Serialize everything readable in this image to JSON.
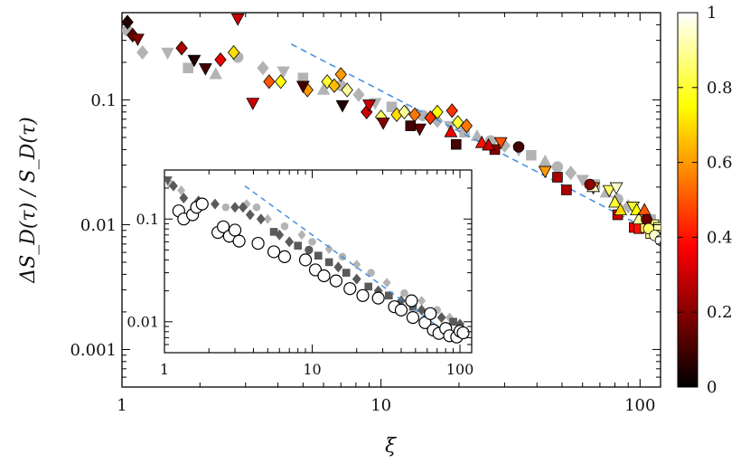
{
  "chart_data": {
    "type": "scatter",
    "xlabel": "ξ",
    "ylabel": "ΔS_D(τ) / S_D(τ)",
    "xscale": "log",
    "yscale": "log",
    "xlim": [
      1,
      120
    ],
    "ylim": [
      0.0005,
      0.5
    ],
    "x_ticks": [
      "1",
      "10",
      "100"
    ],
    "y_ticks": [
      "0.001",
      "0.01",
      "0.1"
    ],
    "grid": false,
    "colorbar": {
      "range": [
        0,
        1
      ],
      "ticks": [
        "0",
        "0.2",
        "0.4",
        "0.6",
        "0.8",
        "1"
      ],
      "colormap": "hot"
    },
    "reference_line": {
      "style": "dashed",
      "color": "#4a8fe0",
      "x": [
        4.5,
        115
      ],
      "y": [
        0.28,
        0.0085
      ]
    },
    "series": [
      {
        "marker": "diamond",
        "colored": true,
        "points": [
          [
            1.05,
            0.42,
            0.05
          ],
          [
            1.1,
            0.33,
            0.15
          ],
          [
            1.7,
            0.26,
            0.25
          ],
          [
            2.4,
            0.21,
            0.35
          ],
          [
            2.7,
            0.24,
            0.7
          ],
          [
            3.7,
            0.14,
            0.5
          ],
          [
            4.1,
            0.14,
            0.75
          ],
          [
            5.2,
            0.12,
            0.6
          ],
          [
            6.2,
            0.14,
            0.8
          ],
          [
            6.6,
            0.13,
            0.65
          ],
          [
            7.0,
            0.16,
            0.6
          ],
          [
            7.4,
            0.12,
            0.9
          ],
          [
            8.8,
            0.08,
            0.3
          ],
          [
            10.0,
            0.073,
            0.85
          ],
          [
            11.5,
            0.076,
            0.7
          ],
          [
            12.3,
            0.08,
            0.9
          ],
          [
            13.5,
            0.076,
            0.55
          ],
          [
            15.5,
            0.072,
            0.45
          ],
          [
            16.5,
            0.08,
            0.75
          ],
          [
            18.8,
            0.082,
            0.45
          ],
          [
            19.8,
            0.066,
            0.8
          ],
          [
            21.4,
            0.062,
            0.55
          ]
        ]
      },
      {
        "marker": "triangle-down",
        "colored": true,
        "points": [
          [
            1.15,
            0.31,
            0.2
          ],
          [
            1.9,
            0.21,
            0.05
          ],
          [
            2.1,
            0.18,
            0.1
          ],
          [
            2.8,
            0.45,
            0.3
          ],
          [
            3.2,
            0.095,
            0.3
          ],
          [
            5.0,
            0.13,
            0.1
          ],
          [
            7.1,
            0.091,
            0.05
          ],
          [
            9.0,
            0.092,
            0.3
          ],
          [
            10.2,
            0.066,
            0.2
          ],
          [
            14.1,
            0.059,
            0.15
          ],
          [
            29.0,
            0.046,
            0.5
          ],
          [
            43.0,
            0.027,
            0.6
          ],
          [
            66.0,
            0.02,
            0.55
          ],
          [
            76.0,
            0.019,
            0.85
          ],
          [
            81.0,
            0.02,
            0.95
          ],
          [
            94.0,
            0.014,
            0.8
          ]
        ]
      },
      {
        "marker": "square",
        "colored": true,
        "points": [
          [
            13.0,
            0.062,
            0.1
          ],
          [
            19.5,
            0.044,
            0.1
          ],
          [
            27.5,
            0.04,
            0.2
          ],
          [
            48.0,
            0.024,
            0.25
          ],
          [
            52.0,
            0.019,
            0.25
          ],
          [
            82.0,
            0.012,
            0.3
          ],
          [
            95.0,
            0.0095,
            0.35
          ],
          [
            99.0,
            0.0093,
            0.4
          ],
          [
            105.0,
            0.0095,
            0.85
          ],
          [
            110.0,
            0.0085,
            0.9
          ],
          [
            113.0,
            0.01,
            0.88
          ],
          [
            118.0,
            0.0095,
            0.92
          ]
        ]
      },
      {
        "marker": "triangle-up",
        "colored": true,
        "points": [
          [
            18.6,
            0.055,
            0.35
          ],
          [
            24.5,
            0.045,
            0.4
          ],
          [
            26.0,
            0.043,
            0.3
          ],
          [
            66.0,
            0.02,
            0.95
          ],
          [
            80.0,
            0.015,
            0.8
          ],
          [
            84.0,
            0.013,
            0.7
          ],
          [
            97.0,
            0.013,
            0.75
          ],
          [
            99.0,
            0.011,
            0.9
          ],
          [
            104.0,
            0.013,
            0.5
          ]
        ]
      },
      {
        "marker": "circle",
        "colored": true,
        "points": [
          [
            34.0,
            0.042,
            0.1
          ],
          [
            64.0,
            0.021,
            0.2
          ],
          [
            106.0,
            0.011,
            0.15
          ],
          [
            108.0,
            0.0093,
            0.85
          ],
          [
            114.0,
            0.0082,
            0.95
          ],
          [
            120.0,
            0.0075,
            1.0
          ],
          [
            125.0,
            0.007,
            0.9
          ]
        ]
      },
      {
        "marker": "mixed",
        "colored": false,
        "points": [
          [
            1.05,
            0.36
          ],
          [
            1.2,
            0.24
          ],
          [
            1.5,
            0.24
          ],
          [
            1.8,
            0.18
          ],
          [
            2.3,
            0.16
          ],
          [
            2.8,
            0.22
          ],
          [
            3.5,
            0.18
          ],
          [
            4.2,
            0.17
          ],
          [
            5.0,
            0.15
          ],
          [
            6.0,
            0.12
          ],
          [
            7.0,
            0.13
          ],
          [
            8.2,
            0.11
          ],
          [
            9.5,
            0.095
          ],
          [
            11.0,
            0.088
          ],
          [
            12.5,
            0.082
          ],
          [
            14.5,
            0.075
          ],
          [
            16.5,
            0.068
          ],
          [
            18.5,
            0.062
          ],
          [
            21.0,
            0.055
          ],
          [
            23.5,
            0.051
          ],
          [
            26.5,
            0.047
          ],
          [
            30.0,
            0.043
          ],
          [
            34.0,
            0.04
          ],
          [
            38.0,
            0.036
          ],
          [
            43.0,
            0.032
          ],
          [
            48.0,
            0.029
          ],
          [
            54.0,
            0.026
          ],
          [
            60.0,
            0.023
          ],
          [
            67.0,
            0.021
          ],
          [
            74.0,
            0.018
          ],
          [
            82.0,
            0.016
          ],
          [
            90.0,
            0.014
          ],
          [
            100.0,
            0.012
          ],
          [
            110.0,
            0.011
          ]
        ]
      }
    ],
    "inset": {
      "xscale": "log",
      "yscale": "log",
      "xlim": [
        1,
        120
      ],
      "ylim": [
        0.005,
        0.3
      ],
      "x_ticks": [
        "1",
        "10",
        "100"
      ],
      "y_ticks": [
        "0.01",
        "0.1"
      ],
      "reference_line": {
        "style": "dashed",
        "color": "#4a8fe0",
        "x": [
          3.5,
          75
        ],
        "y": [
          0.21,
          0.0085
        ]
      },
      "open_circles": [
        [
          1.25,
          0.12
        ],
        [
          1.35,
          0.1
        ],
        [
          1.55,
          0.11
        ],
        [
          1.65,
          0.13
        ],
        [
          1.8,
          0.14
        ],
        [
          2.3,
          0.074
        ],
        [
          2.5,
          0.084
        ],
        [
          2.75,
          0.068
        ],
        [
          3.0,
          0.078
        ],
        [
          3.2,
          0.061
        ],
        [
          4.3,
          0.058
        ],
        [
          5.5,
          0.048
        ],
        [
          6.5,
          0.043
        ],
        [
          9.0,
          0.04
        ],
        [
          10.5,
          0.032
        ],
        [
          12.0,
          0.028
        ],
        [
          14.5,
          0.025
        ],
        [
          18.0,
          0.021
        ],
        [
          22.0,
          0.018
        ],
        [
          28.0,
          0.017
        ],
        [
          36.0,
          0.014
        ],
        [
          40.0,
          0.013
        ],
        [
          47.0,
          0.016
        ],
        [
          48.0,
          0.011
        ],
        [
          58.0,
          0.0098
        ],
        [
          63.0,
          0.012
        ],
        [
          66.0,
          0.0083
        ],
        [
          72.0,
          0.0077
        ],
        [
          80.0,
          0.0086
        ],
        [
          85.0,
          0.0073
        ],
        [
          95.0,
          0.0071
        ],
        [
          100.0,
          0.0081
        ],
        [
          105.0,
          0.0078
        ]
      ],
      "dark_points": [
        [
          1.05,
          0.24,
          "td"
        ],
        [
          1.15,
          0.21,
          "d"
        ],
        [
          1.35,
          0.16,
          "d"
        ],
        [
          1.7,
          0.15,
          "d"
        ],
        [
          2.2,
          0.14,
          "d"
        ],
        [
          3.0,
          0.13,
          "d"
        ],
        [
          3.4,
          0.13,
          "d"
        ],
        [
          3.8,
          0.11,
          "d"
        ],
        [
          4.5,
          0.1,
          "d"
        ],
        [
          5.5,
          0.075,
          "s"
        ],
        [
          6.0,
          0.07,
          "d"
        ],
        [
          7.0,
          0.06,
          "d"
        ],
        [
          8.0,
          0.055,
          "s"
        ],
        [
          9.5,
          0.05,
          "c"
        ],
        [
          11.0,
          0.044,
          "s"
        ],
        [
          13.0,
          0.038,
          "s"
        ],
        [
          15.0,
          0.034,
          "d"
        ],
        [
          17.0,
          0.03,
          "s"
        ],
        [
          20.0,
          0.026,
          "d"
        ],
        [
          24.0,
          0.022,
          "s"
        ],
        [
          28.0,
          0.02,
          "d"
        ],
        [
          33.0,
          0.018,
          "s"
        ],
        [
          40.0,
          0.016,
          "d"
        ],
        [
          48.0,
          0.014,
          "s"
        ],
        [
          55.0,
          0.013,
          "d"
        ],
        [
          65.0,
          0.012,
          "s"
        ],
        [
          75.0,
          0.011,
          "d"
        ],
        [
          90.0,
          0.01,
          "s"
        ],
        [
          100.0,
          0.0095,
          "d"
        ]
      ],
      "light_points": [
        [
          1.1,
          0.22
        ],
        [
          1.3,
          0.19
        ],
        [
          2.6,
          0.13
        ],
        [
          3.6,
          0.14
        ],
        [
          4.2,
          0.13
        ],
        [
          5.0,
          0.1
        ],
        [
          6.5,
          0.085
        ],
        [
          8.5,
          0.07
        ],
        [
          10.0,
          0.06
        ],
        [
          13.0,
          0.051
        ],
        [
          16.0,
          0.043
        ],
        [
          20.0,
          0.036
        ],
        [
          25.0,
          0.03
        ],
        [
          32.0,
          0.024
        ],
        [
          42.0,
          0.019
        ],
        [
          55.0,
          0.016
        ],
        [
          70.0,
          0.013
        ],
        [
          85.0,
          0.011
        ]
      ]
    }
  }
}
